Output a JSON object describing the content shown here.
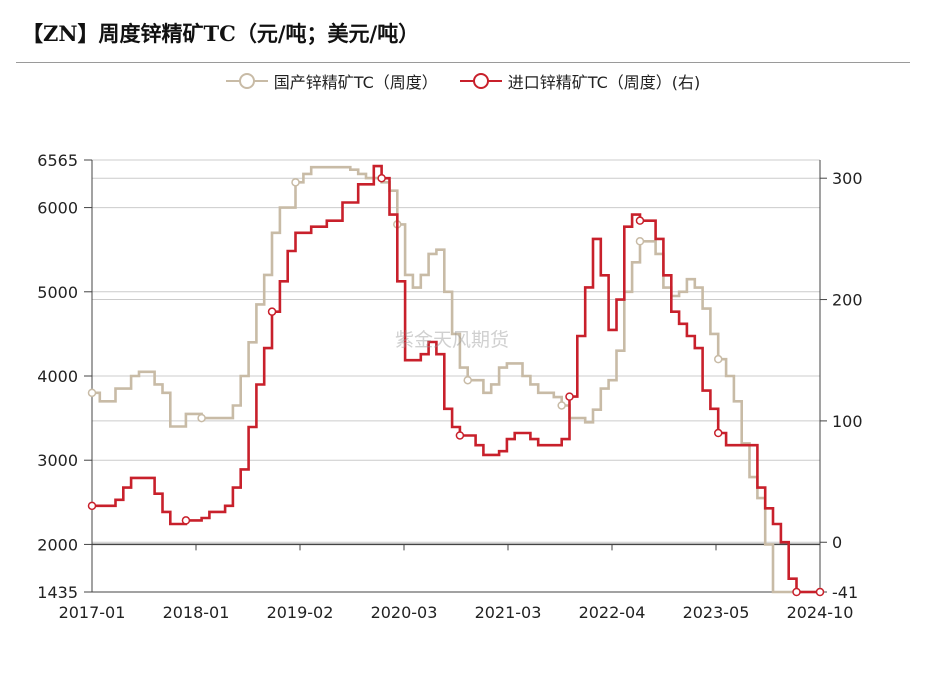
{
  "title": "【ZN】周度锌精矿TC（元/吨；美元/吨）",
  "watermark": "紫金天风期货",
  "colors": {
    "domestic": "#c8bba6",
    "imported": "#c8202b",
    "grid": "#cccccc",
    "axis": "#444444"
  },
  "chart_data": {
    "type": "line",
    "title": "【ZN】周度锌精矿TC（元/吨；美元/吨）",
    "x_tick_labels": [
      "2017-01",
      "2018-01",
      "2019-02",
      "2020-03",
      "2021-03",
      "2022-04",
      "2023-05",
      "2024-10"
    ],
    "x_range": [
      "2017-01",
      "2024-10"
    ],
    "y_left": {
      "min": 1435,
      "max": 6565,
      "ticks": [
        1435,
        2000,
        3000,
        4000,
        5000,
        6000,
        6565
      ]
    },
    "y_right": {
      "min": -41,
      "max": 315,
      "ticks": [
        -41,
        0,
        100,
        200,
        300
      ]
    },
    "grid": true,
    "legend_position": "top",
    "series": [
      {
        "name": "国产锌精矿TC（周度）",
        "axis": "left",
        "color": "#c8bba6",
        "points": [
          [
            "2017-01",
            3800
          ],
          [
            "2017-02",
            3700
          ],
          [
            "2017-04",
            3850
          ],
          [
            "2017-06",
            4000
          ],
          [
            "2017-07",
            4050
          ],
          [
            "2017-09",
            3900
          ],
          [
            "2017-10",
            3800
          ],
          [
            "2017-11",
            3400
          ],
          [
            "2018-01",
            3550
          ],
          [
            "2018-03",
            3500
          ],
          [
            "2018-06",
            3500
          ],
          [
            "2018-07",
            3650
          ],
          [
            "2018-08",
            4000
          ],
          [
            "2018-09",
            4400
          ],
          [
            "2018-10",
            4850
          ],
          [
            "2018-11",
            5200
          ],
          [
            "2018-12",
            5700
          ],
          [
            "2019-01",
            6000
          ],
          [
            "2019-03",
            6300
          ],
          [
            "2019-04",
            6400
          ],
          [
            "2019-05",
            6480
          ],
          [
            "2019-08",
            6480
          ],
          [
            "2019-10",
            6450
          ],
          [
            "2019-11",
            6400
          ],
          [
            "2019-12",
            6350
          ],
          [
            "2020-02",
            6300
          ],
          [
            "2020-03",
            6200
          ],
          [
            "2020-04",
            5800
          ],
          [
            "2020-05",
            5200
          ],
          [
            "2020-06",
            5050
          ],
          [
            "2020-07",
            5200
          ],
          [
            "2020-08",
            5450
          ],
          [
            "2020-09",
            5500
          ],
          [
            "2020-10",
            5000
          ],
          [
            "2020-11",
            4500
          ],
          [
            "2020-12",
            4100
          ],
          [
            "2021-01",
            3950
          ],
          [
            "2021-03",
            3800
          ],
          [
            "2021-04",
            3900
          ],
          [
            "2021-05",
            4100
          ],
          [
            "2021-06",
            4150
          ],
          [
            "2021-08",
            4000
          ],
          [
            "2021-09",
            3900
          ],
          [
            "2021-10",
            3800
          ],
          [
            "2021-12",
            3750
          ],
          [
            "2022-01",
            3650
          ],
          [
            "2022-02",
            3500
          ],
          [
            "2022-04",
            3450
          ],
          [
            "2022-05",
            3600
          ],
          [
            "2022-06",
            3850
          ],
          [
            "2022-07",
            3950
          ],
          [
            "2022-08",
            4300
          ],
          [
            "2022-09",
            5000
          ],
          [
            "2022-10",
            5350
          ],
          [
            "2022-11",
            5600
          ],
          [
            "2023-01",
            5450
          ],
          [
            "2023-02",
            5050
          ],
          [
            "2023-03",
            4950
          ],
          [
            "2023-04",
            5000
          ],
          [
            "2023-05",
            5150
          ],
          [
            "2023-06",
            5050
          ],
          [
            "2023-07",
            4800
          ],
          [
            "2023-08",
            4500
          ],
          [
            "2023-09",
            4200
          ],
          [
            "2023-10",
            4000
          ],
          [
            "2023-11",
            3700
          ],
          [
            "2023-12",
            3200
          ],
          [
            "2024-01",
            2800
          ],
          [
            "2024-02",
            2550
          ],
          [
            "2024-03",
            2000
          ],
          [
            "2024-04",
            1435
          ],
          [
            "2024-10",
            1435
          ]
        ]
      },
      {
        "name": "进口锌精矿TC（周度）(右)",
        "axis": "right",
        "color": "#c8202b",
        "points": [
          [
            "2017-01",
            30
          ],
          [
            "2017-03",
            30
          ],
          [
            "2017-04",
            35
          ],
          [
            "2017-05",
            45
          ],
          [
            "2017-06",
            53
          ],
          [
            "2017-08",
            53
          ],
          [
            "2017-09",
            40
          ],
          [
            "2017-10",
            25
          ],
          [
            "2017-11",
            15
          ],
          [
            "2018-01",
            18
          ],
          [
            "2018-03",
            20
          ],
          [
            "2018-04",
            25
          ],
          [
            "2018-06",
            30
          ],
          [
            "2018-07",
            45
          ],
          [
            "2018-08",
            60
          ],
          [
            "2018-09",
            95
          ],
          [
            "2018-10",
            130
          ],
          [
            "2018-11",
            160
          ],
          [
            "2018-12",
            190
          ],
          [
            "2019-01",
            215
          ],
          [
            "2019-02",
            240
          ],
          [
            "2019-03",
            255
          ],
          [
            "2019-05",
            260
          ],
          [
            "2019-07",
            265
          ],
          [
            "2019-09",
            280
          ],
          [
            "2019-11",
            295
          ],
          [
            "2020-01",
            310
          ],
          [
            "2020-02",
            300
          ],
          [
            "2020-03",
            270
          ],
          [
            "2020-04",
            215
          ],
          [
            "2020-05",
            150
          ],
          [
            "2020-07",
            155
          ],
          [
            "2020-08",
            165
          ],
          [
            "2020-09",
            155
          ],
          [
            "2020-10",
            110
          ],
          [
            "2020-11",
            95
          ],
          [
            "2020-12",
            88
          ],
          [
            "2021-02",
            80
          ],
          [
            "2021-03",
            72
          ],
          [
            "2021-05",
            75
          ],
          [
            "2021-06",
            85
          ],
          [
            "2021-07",
            90
          ],
          [
            "2021-09",
            85
          ],
          [
            "2021-10",
            80
          ],
          [
            "2022-01",
            85
          ],
          [
            "2022-02",
            120
          ],
          [
            "2022-03",
            170
          ],
          [
            "2022-04",
            210
          ],
          [
            "2022-05",
            250
          ],
          [
            "2022-06",
            220
          ],
          [
            "2022-07",
            175
          ],
          [
            "2022-08",
            200
          ],
          [
            "2022-09",
            260
          ],
          [
            "2022-10",
            270
          ],
          [
            "2022-11",
            265
          ],
          [
            "2023-01",
            250
          ],
          [
            "2023-02",
            220
          ],
          [
            "2023-03",
            190
          ],
          [
            "2023-04",
            180
          ],
          [
            "2023-05",
            170
          ],
          [
            "2023-06",
            160
          ],
          [
            "2023-07",
            125
          ],
          [
            "2023-08",
            110
          ],
          [
            "2023-09",
            90
          ],
          [
            "2023-10",
            80
          ],
          [
            "2023-11",
            80
          ],
          [
            "2024-01",
            80
          ],
          [
            "2024-02",
            45
          ],
          [
            "2024-03",
            28
          ],
          [
            "2024-04",
            15
          ],
          [
            "2024-05",
            0
          ],
          [
            "2024-06",
            -30
          ],
          [
            "2024-07",
            -41
          ],
          [
            "2024-10",
            -41
          ]
        ]
      }
    ]
  }
}
